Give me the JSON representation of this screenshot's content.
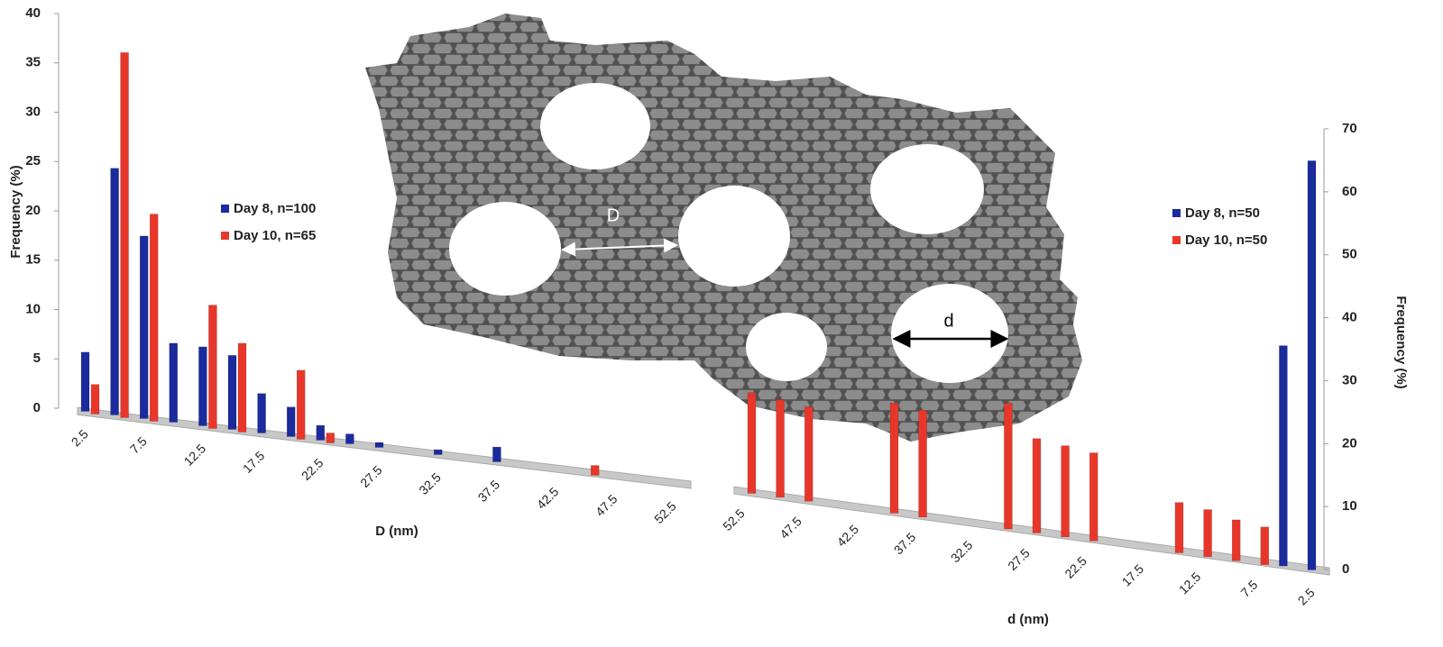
{
  "chart_data": [
    {
      "type": "bar",
      "x_label": "D (nm)",
      "y_label": "Frequency (%)",
      "categories": [
        2.5,
        null,
        7.5,
        null,
        12.5,
        null,
        17.5,
        null,
        22.5,
        null,
        27.5,
        null,
        32.5,
        null,
        37.5,
        null,
        42.5,
        null,
        47.5,
        null,
        52.5
      ],
      "series": [
        {
          "name": "Day 8, n=100",
          "color": "#1b2a9c",
          "values": [
            6,
            25,
            18.5,
            8,
            8,
            7.5,
            4,
            3,
            1.5,
            1,
            0.5,
            0,
            0.5,
            0,
            1.5,
            0,
            0,
            0,
            0,
            0,
            0
          ]
        },
        {
          "name": "Day 10, n=65",
          "color": "#e8372a",
          "values": [
            3,
            37,
            21,
            0,
            12.5,
            9,
            0,
            7,
            1,
            0,
            0,
            0,
            0,
            0,
            0,
            0,
            0,
            1,
            0,
            0,
            0
          ]
        }
      ],
      "ylim": [
        0,
        40
      ],
      "yticks": [
        0,
        5,
        10,
        15,
        20,
        25,
        30,
        35,
        40
      ]
    },
    {
      "type": "bar",
      "x_label": "d (nm)",
      "y_label": "Frequency (%)",
      "categories": [
        52.5,
        null,
        47.5,
        null,
        42.5,
        null,
        37.5,
        null,
        32.5,
        null,
        27.5,
        null,
        22.5,
        null,
        17.5,
        null,
        12.5,
        null,
        7.5,
        null,
        2.5
      ],
      "series": [
        {
          "name": "Day 8, n=50",
          "color": "#1b2a9c",
          "values": [
            0,
            0,
            0,
            0,
            0,
            0,
            0,
            0,
            0,
            0,
            0,
            0,
            0,
            0,
            0,
            0,
            0,
            0,
            0,
            35,
            65
          ]
        },
        {
          "name": "Day 10, n=50",
          "color": "#e8372a",
          "values": [
            16,
            15.5,
            15,
            0,
            0,
            17.5,
            17,
            0,
            0,
            20,
            15,
            14.5,
            14,
            0,
            0,
            8,
            7.5,
            6.5,
            6,
            0,
            0
          ]
        }
      ],
      "ylim": [
        0,
        70
      ],
      "yticks": [
        0,
        10,
        20,
        30,
        40,
        50,
        60,
        70
      ]
    }
  ],
  "illustration": {
    "labels": [
      "D",
      "d"
    ]
  }
}
